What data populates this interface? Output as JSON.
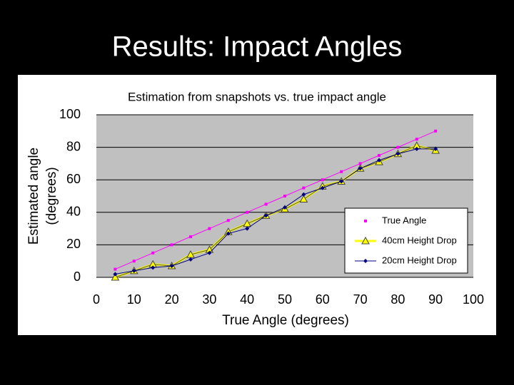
{
  "slide": {
    "title": "Results: Impact Angles"
  },
  "chart_data": {
    "type": "line",
    "title": "Estimation from snapshots vs. true impact angle",
    "x_label": "True Angle (degrees)",
    "y_label": [
      "Estimated angle",
      "(degrees)"
    ],
    "x": [
      5,
      10,
      15,
      20,
      25,
      30,
      35,
      40,
      45,
      50,
      55,
      60,
      65,
      70,
      75,
      80,
      85,
      90
    ],
    "series": [
      {
        "name": "True Angle",
        "color": "#ff00ff",
        "marker": "square",
        "values": [
          5,
          10,
          15,
          20,
          25,
          30,
          35,
          40,
          45,
          50,
          55,
          60,
          65,
          70,
          75,
          80,
          85,
          90
        ]
      },
      {
        "name": "40cm Height Drop",
        "color": "#ffff00",
        "marker": "triangle",
        "values": [
          0,
          4,
          8,
          7,
          14,
          17,
          28,
          33,
          38,
          42,
          48,
          56,
          59,
          67,
          71,
          76,
          81,
          78
        ]
      },
      {
        "name": "20cm Height Drop",
        "color": "#000080",
        "marker": "diamond",
        "values": [
          2,
          4,
          6,
          7,
          11,
          15,
          27,
          30,
          38,
          43,
          51,
          55,
          59,
          67,
          72,
          76,
          79,
          79
        ]
      }
    ],
    "xlim": [
      0,
      100
    ],
    "xticks": [
      0,
      10,
      20,
      30,
      40,
      50,
      60,
      70,
      80,
      90,
      100
    ],
    "ylim": [
      0,
      100
    ],
    "yticks": [
      0,
      20,
      40,
      60,
      80,
      100
    ],
    "grid": true,
    "legend": "lower right"
  }
}
